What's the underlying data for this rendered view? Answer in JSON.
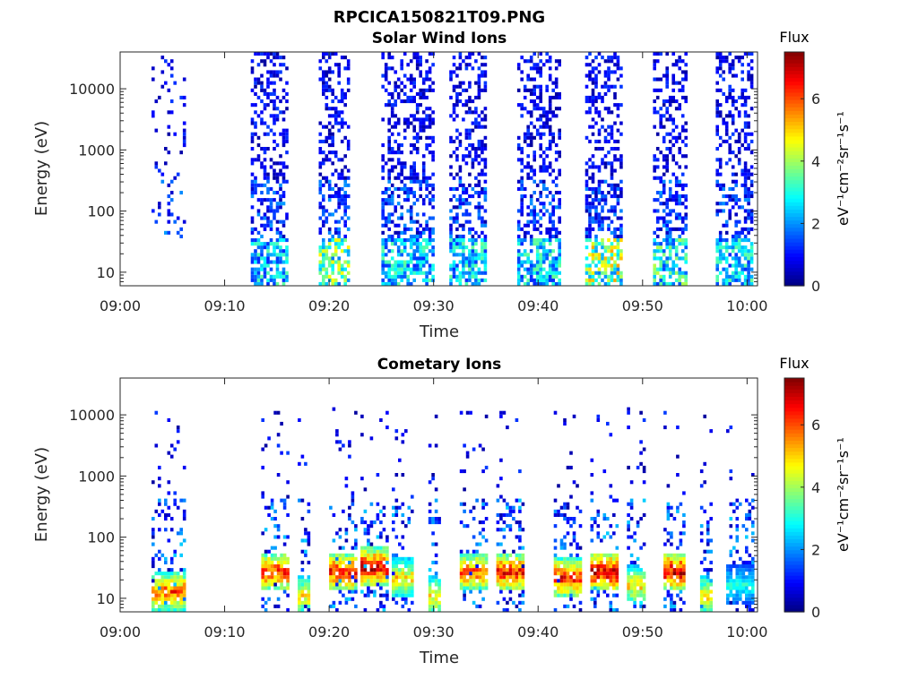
{
  "figure_title": "RPCICA150821T09.PNG",
  "colors": {
    "colormap": [
      "#00007f",
      "#0000ff",
      "#007fff",
      "#00ffff",
      "#7fff7f",
      "#ffff00",
      "#ff7f00",
      "#ff0000",
      "#7f0000"
    ],
    "axis": "#262626"
  },
  "chart_data": [
    {
      "type": "heatmap",
      "title": "Solar Wind Ions",
      "xlabel": "Time",
      "ylabel": "Energy (eV)",
      "x_range": [
        "09:00",
        "10:01"
      ],
      "x_ticks": [
        "09:00",
        "09:10",
        "09:20",
        "09:30",
        "09:40",
        "09:50",
        "10:00"
      ],
      "y_scale": "log",
      "y_range": [
        6,
        40000
      ],
      "y_ticks": [
        "10",
        "100",
        "1000",
        "10000"
      ],
      "colorbar": {
        "label": "Flux",
        "unit": "eV⁻¹cm⁻²sr⁻¹s⁻¹",
        "range": [
          0,
          7.5
        ],
        "ticks": [
          "0",
          "2",
          "4",
          "6"
        ]
      },
      "bursts": [
        {
          "start": "09:03",
          "end": "09:06",
          "low_energy_flux": 0,
          "density": 0.15
        },
        {
          "start": "09:12.5",
          "end": "09:16",
          "low_energy_flux": 3,
          "density": 0.5
        },
        {
          "start": "09:19",
          "end": "09:22",
          "low_energy_flux": 4,
          "density": 0.55
        },
        {
          "start": "09:25",
          "end": "09:30",
          "low_energy_flux": 3,
          "density": 0.45
        },
        {
          "start": "09:31.5",
          "end": "09:35",
          "low_energy_flux": 3,
          "density": 0.5
        },
        {
          "start": "09:38",
          "end": "09:42",
          "low_energy_flux": 3,
          "density": 0.45
        },
        {
          "start": "09:44.5",
          "end": "09:48",
          "low_energy_flux": 4.5,
          "density": 0.55
        },
        {
          "start": "09:51",
          "end": "09:54",
          "low_energy_flux": 3.5,
          "density": 0.5
        },
        {
          "start": "09:57",
          "end": "10:00.5",
          "low_energy_flux": 3,
          "density": 0.5
        }
      ]
    },
    {
      "type": "heatmap",
      "title": "Cometary Ions",
      "xlabel": "Time",
      "ylabel": "Energy (eV)",
      "x_range": [
        "09:00",
        "10:01"
      ],
      "x_ticks": [
        "09:00",
        "09:10",
        "09:20",
        "09:30",
        "09:40",
        "09:50",
        "10:00"
      ],
      "y_scale": "log",
      "y_range": [
        6,
        40000
      ],
      "y_ticks": [
        "10",
        "100",
        "1000",
        "10000"
      ],
      "colorbar": {
        "label": "Flux",
        "unit": "eV⁻¹cm⁻²sr⁻¹s⁻¹",
        "range": [
          0,
          7.5
        ],
        "ticks": [
          "0",
          "2",
          "4",
          "6"
        ]
      },
      "bursts": [
        {
          "start": "09:03",
          "end": "09:06",
          "peak_flux": 6,
          "peak_energy": 12
        },
        {
          "start": "09:13.5",
          "end": "09:16",
          "peak_flux": 6.5,
          "peak_energy": 25
        },
        {
          "start": "09:17",
          "end": "09:18",
          "peak_flux": 5,
          "peak_energy": 10
        },
        {
          "start": "09:20",
          "end": "09:22.5",
          "peak_flux": 6.5,
          "peak_energy": 25
        },
        {
          "start": "09:23",
          "end": "09:25.5",
          "peak_flux": 7,
          "peak_energy": 30
        },
        {
          "start": "09:26",
          "end": "09:28",
          "peak_flux": 5,
          "peak_energy": 20
        },
        {
          "start": "09:29.5",
          "end": "09:30.5",
          "peak_flux": 5,
          "peak_energy": 10
        },
        {
          "start": "09:32.5",
          "end": "09:35",
          "peak_flux": 6,
          "peak_energy": 25
        },
        {
          "start": "09:36",
          "end": "09:38.5",
          "peak_flux": 6.5,
          "peak_energy": 25
        },
        {
          "start": "09:41.5",
          "end": "09:44",
          "peak_flux": 6.5,
          "peak_energy": 20
        },
        {
          "start": "09:45",
          "end": "09:47.5",
          "peak_flux": 7,
          "peak_energy": 25
        },
        {
          "start": "09:48.5",
          "end": "09:50",
          "peak_flux": 5,
          "peak_energy": 15
        },
        {
          "start": "09:52",
          "end": "09:54",
          "peak_flux": 7,
          "peak_energy": 25
        },
        {
          "start": "09:55.5",
          "end": "09:56.5",
          "peak_flux": 5,
          "peak_energy": 10
        },
        {
          "start": "09:58",
          "end": "10:00.5",
          "peak_flux": 3,
          "peak_energy": 15
        }
      ]
    }
  ]
}
